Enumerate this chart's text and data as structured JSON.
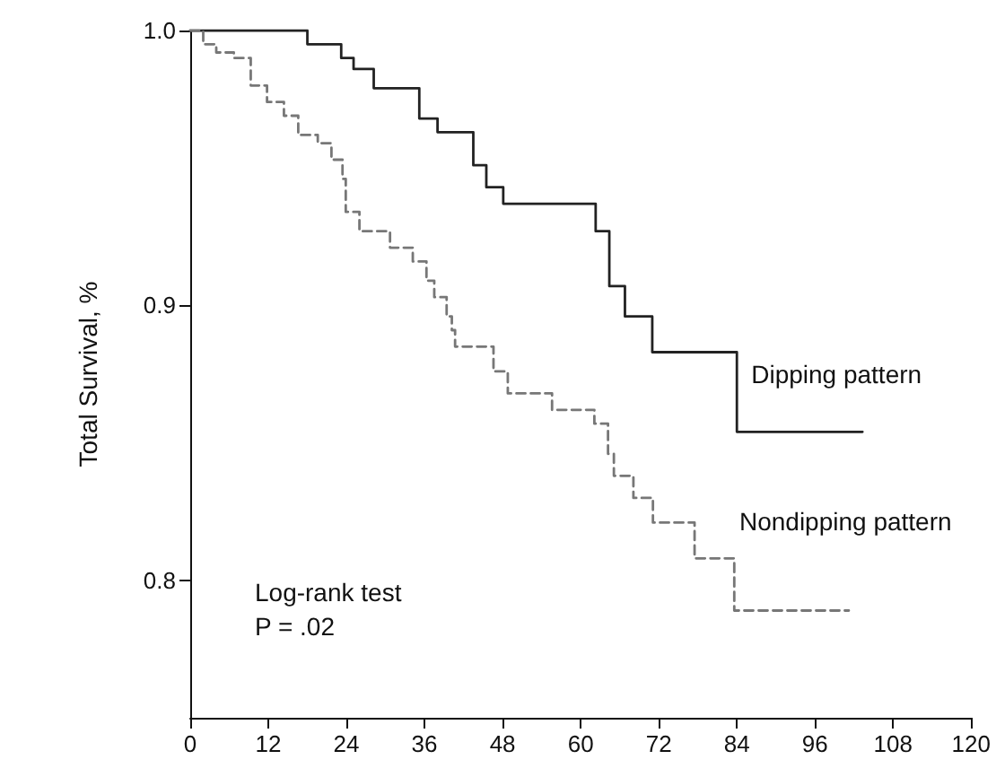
{
  "chart_data": {
    "type": "step",
    "ylabel": "Total Survival, %",
    "xlim": [
      0,
      120
    ],
    "xticks": [
      0,
      12,
      24,
      36,
      48,
      60,
      72,
      84,
      96,
      108,
      120
    ],
    "ylim": [
      0.75,
      1.0
    ],
    "yticks": [
      0.8,
      0.9,
      {
        "value": 1.0,
        "label": "1.0"
      }
    ],
    "grid": false,
    "legend": false,
    "marker": "none",
    "annotations": [
      "Log-rank test",
      "P = .02"
    ],
    "series": [
      {
        "name": "Dipping pattern",
        "color": "#222222",
        "line_style": "solid",
        "x": [
          0,
          18,
          23.2,
          25.1,
          28.2,
          35.2,
          38,
          43.5,
          45.5,
          48.1,
          62.3,
          64.4,
          66.8,
          71,
          84,
          103.3
        ],
        "values": [
          1.0,
          0.995,
          0.99,
          0.986,
          0.979,
          0.968,
          0.963,
          0.951,
          0.943,
          0.937,
          0.927,
          0.907,
          0.896,
          0.883,
          0.854,
          0.854
        ]
      },
      {
        "name": "Nondipping pattern",
        "color": "#777777",
        "line_style": "dashed",
        "x": [
          0,
          2,
          4,
          6.7,
          9.3,
          11.8,
          14.4,
          16.6,
          19.6,
          21.7,
          23.4,
          23.9,
          26,
          30.7,
          34.2,
          36.3,
          37.5,
          39.4,
          40.2,
          40.7,
          46.6,
          48.8,
          55.6,
          62.1,
          64.2,
          65.1,
          68.1,
          71.1,
          77.5,
          83.6,
          101.2
        ],
        "values": [
          1.0,
          0.995,
          0.992,
          0.99,
          0.98,
          0.974,
          0.969,
          0.962,
          0.959,
          0.953,
          0.946,
          0.934,
          0.927,
          0.921,
          0.916,
          0.909,
          0.903,
          0.896,
          0.891,
          0.885,
          0.876,
          0.868,
          0.862,
          0.857,
          0.846,
          0.838,
          0.83,
          0.821,
          0.808,
          0.789,
          0.789
        ]
      }
    ]
  }
}
